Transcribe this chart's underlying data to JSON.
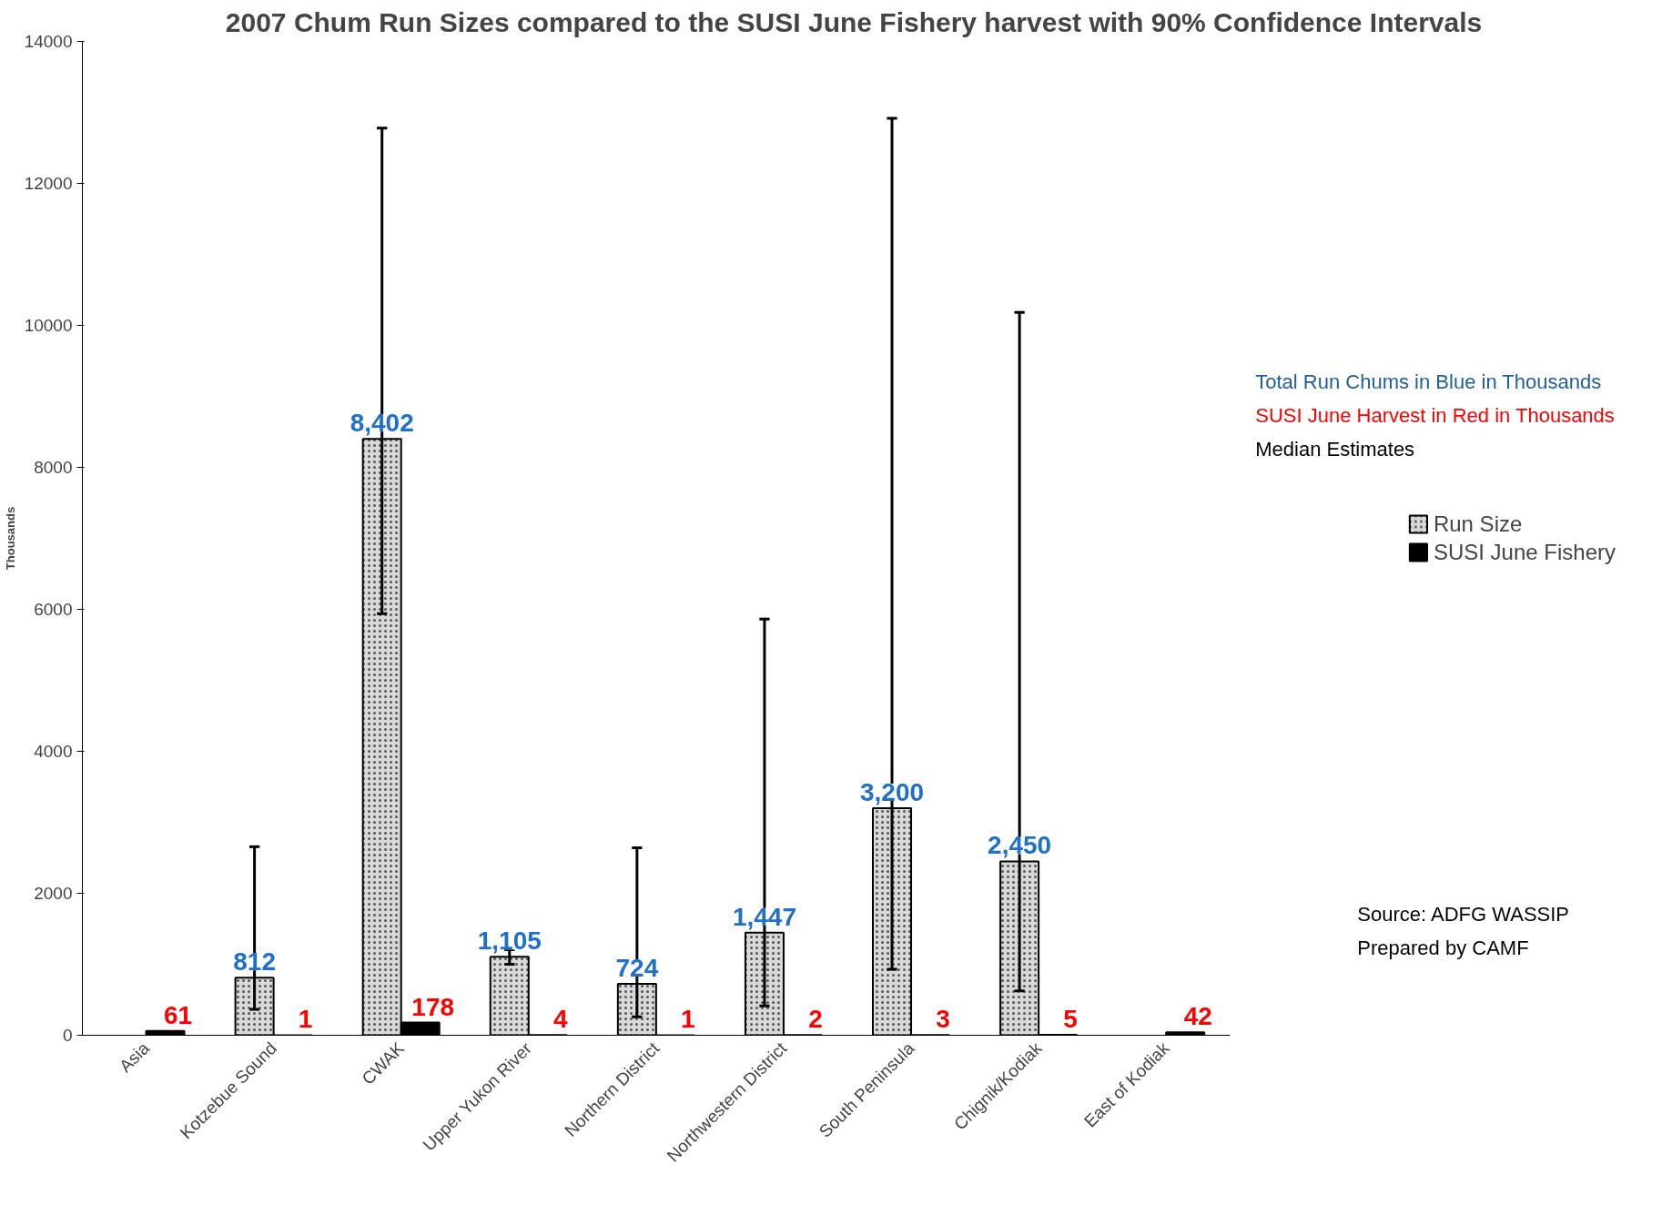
{
  "chart_data": {
    "type": "bar",
    "title": "2007 Chum Run Sizes compared to the SUSI June Fishery harvest with 90% Confidence Intervals",
    "ylabel": "Thousands",
    "categories": [
      "Asia",
      "Kotzebue Sound",
      "CWAK",
      "Upper Yukon River",
      "Northern District",
      "Northwestern District",
      "South Peninsula",
      "Chignik/Kodiak",
      "East of Kodiak"
    ],
    "series": [
      {
        "name": "Run Size",
        "color": "#d9d9d9",
        "values": [
          null,
          812,
          8402,
          1105,
          724,
          1447,
          3200,
          2450,
          null
        ],
        "value_labels": [
          null,
          "812",
          "8,402",
          "1,105",
          "724",
          "1,447",
          "3,200",
          "2,450",
          null
        ],
        "errors": [
          null,
          [
            366,
            2656
          ],
          [
            5939,
            12779
          ],
          [
            1000,
            1206
          ],
          [
            260,
            2641
          ],
          [
            412,
            5863
          ],
          [
            931,
            12916
          ],
          [
            626,
            10183
          ],
          null
        ]
      },
      {
        "name": "SUSI June Fishery",
        "color": "#000000",
        "values": [
          61,
          1,
          178,
          4,
          1,
          2,
          3,
          5,
          42
        ],
        "value_labels": [
          "61",
          "1",
          "178",
          "4",
          "1",
          "2",
          "3",
          "5",
          "42"
        ]
      }
    ],
    "ylim": [
      0,
      14000
    ],
    "yticks": [
      0,
      2000,
      4000,
      6000,
      8000,
      10000,
      12000,
      14000
    ],
    "grid": false,
    "legend": "right",
    "annotations": [
      "Total Run Chums in Blue in Thousands",
      "SUSI June Harvest in Red in Thousands",
      "Median Estimates",
      "Source: ADFG WASSIP",
      "Prepared by CAMF"
    ]
  }
}
